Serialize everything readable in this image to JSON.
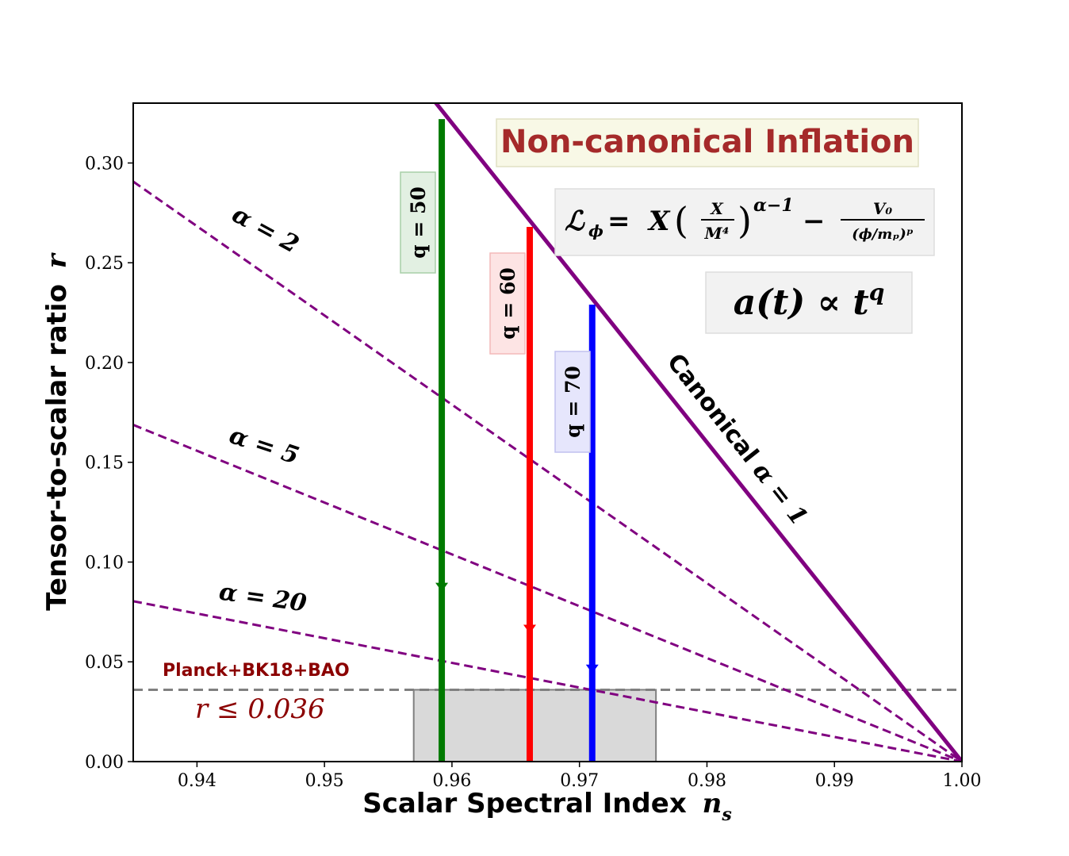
{
  "chart_data": {
    "type": "line",
    "title": "Non-canonical Inflation",
    "xlabel": "Scalar Spectral Index",
    "xlabel_symbol": "n",
    "xlabel_subscript": "s",
    "ylabel": "Tensor-to-scalar ratio",
    "ylabel_symbol": "r",
    "xlim": [
      0.935,
      1.0
    ],
    "ylim": [
      0.0,
      0.33
    ],
    "xticks": [
      0.94,
      0.95,
      0.96,
      0.97,
      0.98,
      0.99,
      1.0
    ],
    "xtick_labels": [
      "0.94",
      "0.95",
      "0.96",
      "0.97",
      "0.98",
      "0.99",
      "1.00"
    ],
    "yticks": [
      0.0,
      0.05,
      0.1,
      0.15,
      0.2,
      0.25,
      0.3
    ],
    "ytick_labels": [
      "0.00",
      "0.05",
      "0.10",
      "0.15",
      "0.20",
      "0.25",
      "0.30"
    ],
    "alpha_lines": [
      {
        "name": "Canonical α = 1",
        "label": "Canonical",
        "alpha": 1,
        "slope": 8.0,
        "style": "solid",
        "color": "#800080"
      },
      {
        "name": "α = 2",
        "alpha": 2,
        "slope": 4.4721,
        "style": "dashed",
        "color": "#800080"
      },
      {
        "name": "α = 5",
        "alpha": 5,
        "slope": 2.5962,
        "style": "dashed",
        "color": "#800080"
      },
      {
        "name": "α = 20",
        "alpha": 20,
        "slope": 1.2367,
        "style": "dashed",
        "color": "#800080"
      }
    ],
    "q_lines": [
      {
        "name": "q = 50",
        "q": 50,
        "n_s": 0.9592,
        "r_max": 0.322,
        "marker_r": 0.088,
        "color": "#007a00",
        "label_bg": "#e2f0e2",
        "label_border": "#a8cfa8"
      },
      {
        "name": "q = 60",
        "q": 60,
        "n_s": 0.9661,
        "r_max": 0.268,
        "marker_r": 0.067,
        "color": "#ff0000",
        "label_bg": "#fde4e4",
        "label_border": "#f3b9b9"
      },
      {
        "name": "q = 70",
        "q": 70,
        "n_s": 0.971,
        "r_max": 0.229,
        "marker_r": 0.047,
        "color": "#0000ff",
        "label_bg": "#e6e6fc",
        "label_border": "#c0c0ef"
      }
    ],
    "planck_bound": {
      "label": "Planck+BK18+BAO",
      "bound_text": "r ≤ 0.036",
      "r": 0.036,
      "color": "#808080",
      "text_color": "#8b0000"
    },
    "planck_region": {
      "n_s_min": 0.957,
      "n_s_max": 0.976,
      "r_max": 0.036,
      "fill": "#d9d9d9",
      "stroke": "#808080"
    },
    "annotations": {
      "title_color": "#a52a2a",
      "title_bg": "#f8f8e6",
      "lagrangian": "ℒφ = X (X/M⁴)^(α−1) − V₀/(φ/m_p)^p",
      "scale_factor": "a(t) ∝ t^q"
    }
  }
}
